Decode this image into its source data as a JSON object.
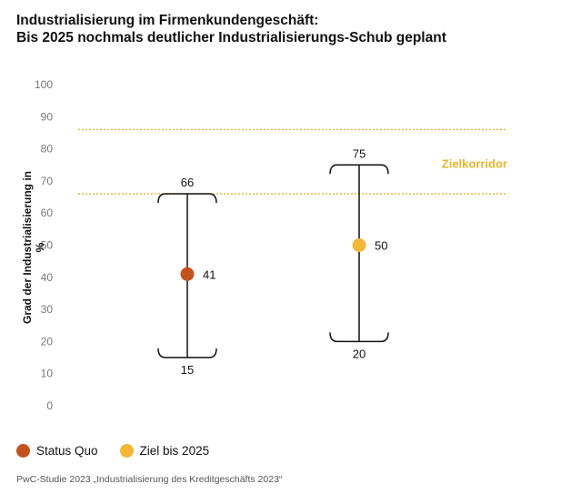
{
  "title_line1": "Industrialisierung im Firmenkundengeschäft:",
  "title_line2": "Bis 2025 nochmals deutlicher Industrialisierungs-Schub geplant",
  "source": "PwC-Studie 2023 „Industrialisierung des Kreditgeschäfts 2023“",
  "chart_data": {
    "type": "range-dot",
    "ylabel": "Grad der Industrialisierung in %",
    "ylim": [
      0,
      100
    ],
    "yticks": [
      0,
      10,
      20,
      30,
      40,
      50,
      60,
      70,
      80,
      90,
      100
    ],
    "grid": false,
    "target_band": {
      "label": "Zielkorridor",
      "low": 66,
      "high": 86,
      "color": "#e8b52e"
    },
    "series": [
      {
        "name": "Status Quo",
        "color": "#c4521f",
        "min": 15,
        "max": 66,
        "value": 41
      },
      {
        "name": "Ziel bis 2025",
        "color": "#f2b736",
        "min": 20,
        "max": 75,
        "value": 50
      }
    ],
    "legend_position": "bottom-left"
  }
}
